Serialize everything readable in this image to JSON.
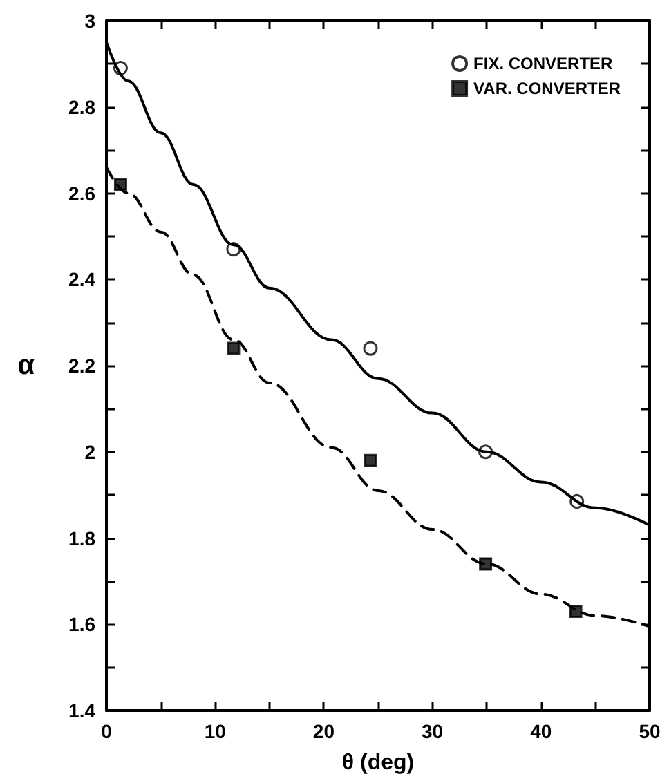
{
  "chart_data": {
    "type": "scatter",
    "xlabel": "θ (deg)",
    "ylabel": "α",
    "xlim": [
      0,
      50
    ],
    "xticks": [
      0,
      {
        "value": 5,
        "label": null
      },
      10,
      {
        "value": 15,
        "label": null
      },
      20,
      {
        "value": 25,
        "label": null
      },
      30,
      {
        "value": 35,
        "label": null
      },
      40,
      {
        "value": 45,
        "label": null
      },
      50
    ],
    "ylim": [
      1.4,
      3
    ],
    "yticks": [
      1.4,
      {
        "value": 1.5,
        "label": null
      },
      1.6,
      {
        "value": 1.7,
        "label": null
      },
      1.8,
      {
        "value": 1.9,
        "label": null
      },
      2,
      {
        "value": 2.1,
        "label": null
      },
      2.2,
      {
        "value": 2.3,
        "label": null
      },
      2.4,
      {
        "value": 2.5,
        "label": null
      },
      2.6,
      {
        "value": 2.7,
        "label": null
      },
      2.8,
      {
        "value": 2.9,
        "label": null
      },
      3
    ],
    "grid": false,
    "legend": "top right",
    "series": [
      {
        "name": "FIX. CONVERTER",
        "marker": "circle",
        "color": "#000000",
        "x": [
          1.3,
          11.7,
          24.3,
          34.9,
          43.3
        ],
        "values": [
          2.89,
          2.47,
          2.24,
          2.0,
          1.885
        ]
      },
      {
        "name": "VAR. CONVERTER",
        "marker": "square",
        "color": "#000000",
        "x": [
          1.3,
          11.7,
          24.3,
          34.9,
          43.2
        ],
        "values": [
          2.62,
          2.24,
          1.98,
          1.74,
          1.63
        ]
      },
      {
        "type": "line",
        "marker": "none",
        "line_style": "solid",
        "color": "#000000",
        "x": [
          0,
          2,
          5,
          8,
          11.7,
          15,
          20.7,
          25,
          30,
          35,
          40,
          45,
          50
        ],
        "values": [
          2.95,
          2.86,
          2.74,
          2.62,
          2.48,
          2.38,
          2.26,
          2.17,
          2.09,
          2.0,
          1.93,
          1.87,
          1.83
        ]
      },
      {
        "type": "line",
        "marker": "none",
        "line_style": "dashed",
        "color": "#000000",
        "x": [
          0,
          2,
          5,
          8,
          11.7,
          15,
          20.7,
          25,
          30,
          35,
          40,
          45,
          50
        ],
        "values": [
          2.66,
          2.6,
          2.51,
          2.41,
          2.26,
          2.16,
          2.01,
          1.91,
          1.82,
          1.74,
          1.67,
          1.62,
          1.595
        ]
      }
    ]
  }
}
